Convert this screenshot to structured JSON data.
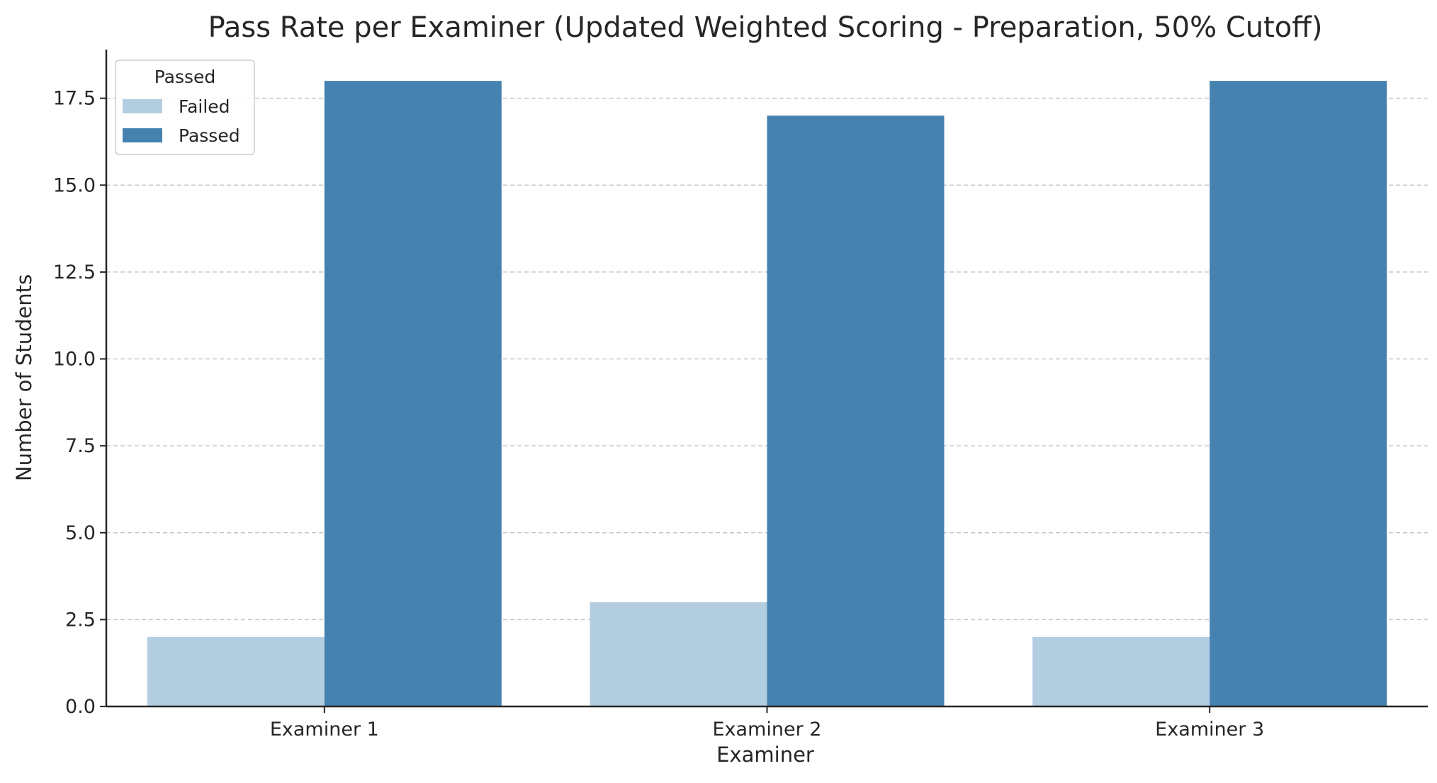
{
  "chart_data": {
    "type": "bar",
    "title": "Pass Rate per Examiner (Updated Weighted Scoring - Preparation, 50% Cutoff)",
    "xlabel": "Examiner",
    "ylabel": "Number of Students",
    "categories": [
      "Examiner 1",
      "Examiner 2",
      "Examiner 3"
    ],
    "series": [
      {
        "name": "Failed",
        "values": [
          2,
          3,
          2
        ],
        "color": "#b3cde0"
      },
      {
        "name": "Passed",
        "values": [
          18,
          17,
          18
        ],
        "color": "#4682b0"
      }
    ],
    "ylim": [
      0,
      18.9
    ],
    "yticks": [
      "0.0",
      "2.5",
      "5.0",
      "7.5",
      "10.0",
      "12.5",
      "15.0",
      "17.5"
    ],
    "grid": "y-dashed",
    "legend": {
      "title": "Passed",
      "placement": "top-left"
    }
  }
}
